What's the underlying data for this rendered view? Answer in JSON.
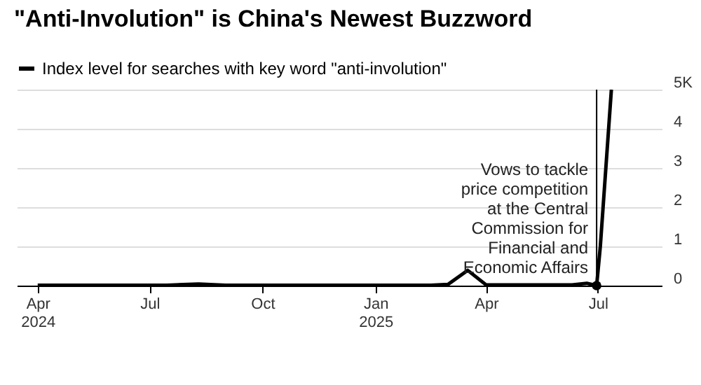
{
  "chart_data": {
    "type": "line",
    "title": "\"Anti-Involution\" is China's Newest Buzzword",
    "x": [
      "2024-04-01",
      "2024-07-15",
      "2024-08-10",
      "2024-09-01",
      "2025-02-15",
      "2025-03-01",
      "2025-03-17",
      "2025-04-01",
      "2025-06-10",
      "2025-06-22",
      "2025-06-30",
      "2025-07-03",
      "2025-07-12"
    ],
    "series": [
      {
        "name": "Index level for searches with key word \"anti-involution\"",
        "color": "#000000",
        "values": [
          0.01,
          0.01,
          0.04,
          0.01,
          0.01,
          0.03,
          0.39,
          0.02,
          0.02,
          0.06,
          0,
          1,
          5
        ]
      },
      {
        "type": "scatter",
        "marker": "circle",
        "color": "#000000",
        "x": [
          "2025-06-30"
        ],
        "values": [
          0
        ]
      }
    ],
    "xlim": [
      "2024-03-15",
      "2025-08-22"
    ],
    "xticks": [
      {
        "value": "2024-04-01",
        "label": "Apr 2024"
      },
      {
        "value": "2024-07-01",
        "label": "Jul"
      },
      {
        "value": "2024-10-01",
        "label": "Oct"
      },
      {
        "value": "2025-01-01",
        "label": "Jan 2025"
      },
      {
        "value": "2025-04-01",
        "label": "Apr"
      },
      {
        "value": "2025-07-01",
        "label": "Jul"
      }
    ],
    "ylim": [
      0,
      5
    ],
    "yticks": [
      0,
      1,
      2,
      3,
      4,
      {
        "value": 5,
        "label": "5K"
      }
    ],
    "ref_lines": [
      {
        "axis": "x",
        "value": "2025-06-30",
        "label": "Vows to tackle price competition at the Central Commission for Financial and Economic Affairs",
        "color": "#000000"
      }
    ],
    "grid": "y",
    "legend": "top left",
    "marker": "none",
    "line_style": "solid"
  }
}
